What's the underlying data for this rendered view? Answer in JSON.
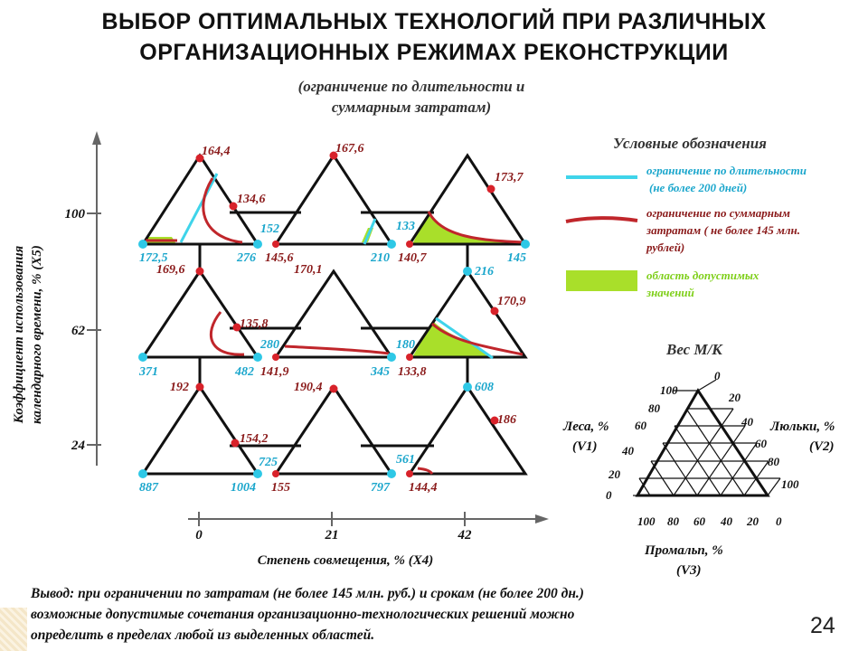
{
  "title_line1": "ВЫБОР ОПТИМАЛЬНЫХ ТЕХНОЛОГИЙ ПРИ РАЗЛИЧНЫХ",
  "title_line2": "ОРГАНИЗАЦИОННЫХ РЕЖИМАХ РЕКОНСТРУКЦИИ",
  "subtitle_line1": "(ограничение по длительности и",
  "subtitle_line2": "суммарным затратам)",
  "y_axis": {
    "label_line1": "Коэффициент использования",
    "label_line2": "календарного времени, % (X5)",
    "ticks": [
      "100",
      "62",
      "24"
    ]
  },
  "x_axis": {
    "label": "Степень совмещения, %",
    "label_var": "(X4)",
    "ticks": [
      "0",
      "21",
      "42"
    ]
  },
  "legend": {
    "title": "Условные обозначения",
    "duration_line1": "ограничение по длительности",
    "duration_line2": "(не более 200 дней)",
    "cost_line1": "ограничение по суммарным",
    "cost_line2": "затратам ( не более 145 млн.",
    "cost_line3": "рублей)",
    "area_line1": "область допустимых",
    "area_line2": "значений",
    "colors": {
      "duration": "#3fd4ea",
      "cost": "#c0262b",
      "area": "#a9df2a"
    }
  },
  "triangles": [
    {
      "top": "164,4",
      "left": "172,5",
      "right": "276",
      "side": "134,6"
    },
    {
      "top": "167,6",
      "left": "152",
      "left_red": "145,6",
      "right": "210"
    },
    {
      "top": "",
      "left": "133",
      "left_red": "140,7",
      "right": "145",
      "side": "173,7"
    },
    {
      "top": "169,6",
      "left": "371",
      "right": "482",
      "side": "135,8",
      "top_cyan": "216"
    },
    {
      "top": "170,1",
      "left": "280",
      "left_red": "141,9",
      "right": "345"
    },
    {
      "top": "",
      "left": "180",
      "left_red": "133,8",
      "right": "",
      "side": "170,9"
    },
    {
      "top": "192",
      "left": "887",
      "right": "1004",
      "side": "154,2"
    },
    {
      "top": "190,4",
      "left": "725",
      "left_red": "155",
      "right": "797"
    },
    {
      "top": "608",
      "left": "561",
      "left_red": "144,4",
      "side": "186"
    }
  ],
  "weight_triangle": {
    "title": "Вес М/К",
    "left_label": "Леса, %",
    "left_var": "(V1)",
    "right_label": "Люльки, %",
    "right_var": "(V2)",
    "bottom_label": "Промальп, %",
    "bottom_var": "(V3)",
    "left_ticks": [
      "100",
      "80",
      "60",
      "40",
      "20",
      "0"
    ],
    "right_ticks": [
      "0",
      "20",
      "40",
      "60",
      "80",
      "100"
    ],
    "bottom_ticks": [
      "100",
      "80",
      "60",
      "40",
      "20",
      "0"
    ]
  },
  "conclusion": {
    "line1": "Вывод: при ограничении по затратам (не более 145 млн. руб.) и срокам (не более 200 дн.)",
    "line2": "возможные допустимые сочетания организационно-технологических решений можно",
    "line3": "определить в пределах любой из выделенных областей."
  },
  "page_number": "24"
}
